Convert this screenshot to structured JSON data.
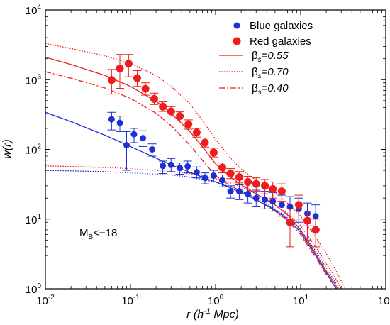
{
  "chart_data": {
    "type": "scatter",
    "xscale": "log",
    "yscale": "log",
    "xlim": [
      0.01,
      100
    ],
    "ylim": [
      1,
      10000
    ],
    "x_ticks": [
      0.01,
      0.1,
      1,
      10,
      100
    ],
    "y_ticks": [
      1,
      10,
      100,
      1000,
      10000
    ],
    "x_tick_labels": [
      {
        "base": "10",
        "exp": "-2"
      },
      {
        "base": "10",
        "exp": "-1"
      },
      {
        "base": "10",
        "exp": "0"
      },
      {
        "base": "10",
        "exp": "1"
      },
      {
        "base": "10",
        "exp": "2"
      }
    ],
    "y_tick_labels": [
      {
        "base": "10",
        "exp": "0"
      },
      {
        "base": "10",
        "exp": "1"
      },
      {
        "base": "10",
        "exp": "2"
      },
      {
        "base": "10",
        "exp": "3"
      },
      {
        "base": "10",
        "exp": "4"
      }
    ],
    "xlabel": {
      "main": "r (h",
      "sup": "-1",
      "rest": " Mpc)"
    },
    "ylabel": "w(r)",
    "annotation": {
      "main": "M",
      "sub": "B",
      "rest": "<−18"
    },
    "legend_position": "top-right",
    "colors": {
      "blue": "#1f2fd6",
      "red": "#ee1c1c"
    },
    "series": [
      {
        "name": "Blue galaxies",
        "kind": "points",
        "color": "#1f2fd6",
        "points": [
          {
            "x": 0.06,
            "y": 270,
            "lo": 190,
            "hi": 340
          },
          {
            "x": 0.075,
            "y": 240,
            "lo": 180,
            "hi": 300
          },
          {
            "x": 0.09,
            "y": 115,
            "lo": 50,
            "hi": 180
          },
          {
            "x": 0.11,
            "y": 165,
            "lo": 125,
            "hi": 200
          },
          {
            "x": 0.14,
            "y": 145,
            "lo": 110,
            "hi": 185
          },
          {
            "x": 0.18,
            "y": 100,
            "lo": 80,
            "hi": 120
          },
          {
            "x": 0.24,
            "y": 58,
            "lo": 45,
            "hi": 68
          },
          {
            "x": 0.3,
            "y": 60,
            "lo": 48,
            "hi": 74
          },
          {
            "x": 0.38,
            "y": 54,
            "lo": 44,
            "hi": 64
          },
          {
            "x": 0.47,
            "y": 57,
            "lo": 46,
            "hi": 68
          },
          {
            "x": 0.6,
            "y": 47,
            "lo": 39,
            "hi": 56
          },
          {
            "x": 0.75,
            "y": 39,
            "lo": 32,
            "hi": 46
          },
          {
            "x": 0.95,
            "y": 42,
            "lo": 34,
            "hi": 50
          },
          {
            "x": 1.2,
            "y": 36,
            "lo": 29,
            "hi": 43
          },
          {
            "x": 1.5,
            "y": 25,
            "lo": 20,
            "hi": 30
          },
          {
            "x": 1.9,
            "y": 25,
            "lo": 19,
            "hi": 31
          },
          {
            "x": 2.4,
            "y": 23,
            "lo": 17,
            "hi": 29
          },
          {
            "x": 3.0,
            "y": 20,
            "lo": 15,
            "hi": 26
          },
          {
            "x": 3.8,
            "y": 19,
            "lo": 14,
            "hi": 25
          },
          {
            "x": 4.7,
            "y": 18,
            "lo": 13,
            "hi": 24
          },
          {
            "x": 6.0,
            "y": 16,
            "lo": 11,
            "hi": 22
          },
          {
            "x": 7.5,
            "y": 15,
            "lo": 10,
            "hi": 21
          },
          {
            "x": 9.5,
            "y": 14,
            "lo": 9,
            "hi": 20
          },
          {
            "x": 12,
            "y": 12,
            "lo": 8,
            "hi": 17
          },
          {
            "x": 15,
            "y": 11,
            "lo": 7,
            "hi": 16
          }
        ]
      },
      {
        "name": "Red galaxies",
        "kind": "points",
        "color": "#ee1c1c",
        "points": [
          {
            "x": 0.06,
            "y": 990,
            "lo": 620,
            "hi": 1400
          },
          {
            "x": 0.075,
            "y": 1450,
            "lo": 750,
            "hi": 2300
          },
          {
            "x": 0.095,
            "y": 1700,
            "lo": 1100,
            "hi": 2300
          },
          {
            "x": 0.12,
            "y": 1050,
            "lo": 800,
            "hi": 1350
          },
          {
            "x": 0.15,
            "y": 740,
            "lo": 600,
            "hi": 900
          },
          {
            "x": 0.19,
            "y": 530,
            "lo": 440,
            "hi": 640
          },
          {
            "x": 0.24,
            "y": 410,
            "lo": 350,
            "hi": 480
          },
          {
            "x": 0.3,
            "y": 350,
            "lo": 300,
            "hi": 410
          },
          {
            "x": 0.38,
            "y": 300,
            "lo": 255,
            "hi": 345
          },
          {
            "x": 0.48,
            "y": 230,
            "lo": 195,
            "hi": 265
          },
          {
            "x": 0.6,
            "y": 175,
            "lo": 150,
            "hi": 200
          },
          {
            "x": 0.75,
            "y": 125,
            "lo": 108,
            "hi": 145
          },
          {
            "x": 0.95,
            "y": 90,
            "lo": 78,
            "hi": 104
          },
          {
            "x": 1.2,
            "y": 55,
            "lo": 46,
            "hi": 64
          },
          {
            "x": 1.5,
            "y": 45,
            "lo": 38,
            "hi": 53
          },
          {
            "x": 1.9,
            "y": 40,
            "lo": 33,
            "hi": 48
          },
          {
            "x": 2.4,
            "y": 34,
            "lo": 27,
            "hi": 41
          },
          {
            "x": 3.0,
            "y": 32,
            "lo": 25,
            "hi": 39
          },
          {
            "x": 3.8,
            "y": 30,
            "lo": 23,
            "hi": 37
          },
          {
            "x": 4.7,
            "y": 27,
            "lo": 20,
            "hi": 34
          },
          {
            "x": 6.0,
            "y": 25,
            "lo": 18,
            "hi": 32
          },
          {
            "x": 7.5,
            "y": 9,
            "lo": 4,
            "hi": 14
          },
          {
            "x": 9.5,
            "y": 16,
            "lo": 10,
            "hi": 22
          },
          {
            "x": 12,
            "y": 9.5,
            "lo": 5,
            "hi": 13
          },
          {
            "x": 15,
            "y": 7,
            "lo": 4,
            "hi": 10
          }
        ]
      },
      {
        "name": "βs=0.55",
        "label": {
          "main": "β",
          "sub": "s",
          "rest": "=0.55"
        },
        "kind": "line",
        "color": "#ee1c1c",
        "dash": "solid",
        "x": [
          0.01,
          0.02,
          0.05,
          0.1,
          0.2,
          0.3,
          0.5,
          0.7,
          1,
          1.5,
          2,
          3,
          5,
          7,
          10,
          15,
          20,
          25,
          30
        ],
        "y": [
          2100,
          1650,
          1150,
          800,
          490,
          330,
          180,
          110,
          62,
          40,
          31,
          23,
          16,
          11.5,
          7,
          3.2,
          1.8,
          1.2,
          0.8
        ]
      },
      {
        "name": "βs=0.70",
        "label": {
          "main": "β",
          "sub": "s",
          "rest": "=0.70"
        },
        "kind": "line",
        "color": "#ee1c1c",
        "dash": "dotted",
        "x": [
          0.01,
          0.02,
          0.05,
          0.1,
          0.2,
          0.3,
          0.5,
          0.7,
          1,
          1.5,
          2,
          3,
          5,
          7,
          10,
          15,
          20,
          25,
          30,
          35
        ],
        "y": [
          3300,
          2800,
          2200,
          1700,
          1150,
          800,
          450,
          260,
          140,
          75,
          52,
          36,
          24,
          17,
          11,
          5.5,
          3.2,
          2,
          1.3,
          0.9
        ]
      },
      {
        "name": "βs=0.40",
        "label": {
          "main": "β",
          "sub": "s",
          "rest": "=0.40"
        },
        "kind": "line",
        "color": "#ee1c1c",
        "dash": "dashdot",
        "x": [
          0.01,
          0.02,
          0.05,
          0.1,
          0.2,
          0.3,
          0.5,
          0.7,
          1,
          1.5,
          2,
          3,
          5,
          7,
          10,
          15,
          20,
          25,
          30
        ],
        "y": [
          1300,
          1050,
          760,
          540,
          330,
          220,
          115,
          70,
          42,
          30,
          25,
          19,
          13,
          9.5,
          6,
          2.8,
          1.6,
          1.1,
          0.75
        ]
      },
      {
        "kind": "line",
        "color": "#1f2fd6",
        "dash": "solid",
        "x": [
          0.01,
          0.02,
          0.05,
          0.1,
          0.2,
          0.3,
          0.5,
          0.7,
          1,
          1.5,
          2,
          3,
          5,
          7,
          10,
          15,
          20,
          25,
          30
        ],
        "y": [
          340,
          250,
          160,
          110,
          75,
          60,
          47,
          40,
          34,
          28,
          24,
          19,
          13.5,
          10,
          6.5,
          3,
          1.7,
          1.1,
          0.75
        ]
      },
      {
        "kind": "line",
        "color": "#1f2fd6",
        "dash": "dotted",
        "x": [
          0.01,
          0.05,
          0.1,
          0.3,
          0.5,
          1,
          1.5,
          2,
          3,
          5,
          7,
          10,
          15,
          20,
          25,
          30
        ],
        "y": [
          50,
          48,
          46,
          43,
          40,
          34,
          29,
          25,
          20,
          14,
          10.5,
          7,
          3.5,
          2,
          1.3,
          0.9
        ]
      },
      {
        "kind": "line",
        "color": "#ee1c1c",
        "dash": "dotted",
        "x": [
          0.01,
          0.05,
          0.1,
          0.3,
          0.5,
          1,
          1.5,
          2,
          3,
          5,
          7,
          10,
          15,
          20,
          25,
          30
        ],
        "y": [
          58,
          55,
          53,
          48,
          45,
          38,
          33,
          29,
          23,
          16,
          12,
          8,
          4,
          2.3,
          1.5,
          1
        ]
      }
    ]
  }
}
